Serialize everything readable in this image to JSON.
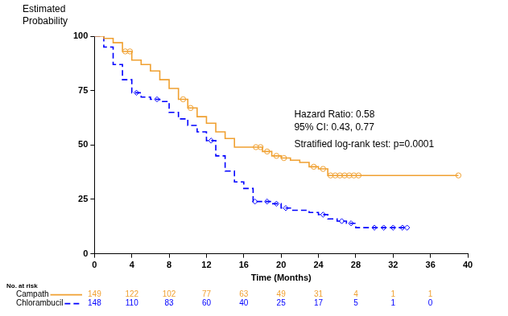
{
  "chart_data": {
    "type": "line",
    "y_label": "Estimated Probability",
    "x_label": "Time (Months)",
    "xlim": [
      0,
      40
    ],
    "xticks": [
      0,
      4,
      8,
      12,
      16,
      20,
      24,
      28,
      32,
      36,
      40
    ],
    "ylim": [
      0,
      100
    ],
    "yticks": [
      0,
      25,
      50,
      75,
      100
    ],
    "grid": false,
    "annotations": [
      "Hazard Ratio: 0.58",
      "95% CI: 0.43, 0.77",
      "Stratified log-rank test: p=0.0001"
    ],
    "series": [
      {
        "name": "Campath",
        "color": "#f0a030",
        "line_style": "solid",
        "marker": "circle",
        "x": [
          0,
          1,
          2,
          3,
          4,
          5,
          6,
          7,
          8,
          9,
          10,
          11,
          12,
          13,
          14,
          15,
          18,
          19,
          20,
          21,
          22,
          23,
          24,
          25,
          39
        ],
        "values": [
          100,
          99,
          97,
          93,
          89,
          87,
          84,
          80,
          76,
          71,
          67,
          63,
          60,
          56,
          53,
          49,
          47,
          45,
          44,
          43,
          42,
          40,
          39,
          36,
          36
        ],
        "censored": {
          "x": [
            3.3,
            3.8,
            9.5,
            10.3,
            17.3,
            17.8,
            18.5,
            19.5,
            20.3,
            23.5,
            24.5,
            25.3,
            25.8,
            26.3,
            26.8,
            27.3,
            27.8,
            28.3,
            39
          ],
          "values": [
            93,
            93,
            71,
            67,
            49,
            49,
            47,
            45,
            44,
            40,
            39,
            36,
            36,
            36,
            36,
            36,
            36,
            36,
            36
          ]
        }
      },
      {
        "name": "Chlorambucil",
        "color": "#0000ff",
        "line_style": "dashed",
        "marker": "diamond",
        "x": [
          0,
          1,
          2,
          3,
          4,
          5,
          6,
          7,
          8,
          9,
          10,
          11,
          12,
          13,
          14,
          15,
          16,
          17,
          19,
          20,
          21,
          23,
          24,
          25,
          26,
          27,
          28,
          33.5
        ],
        "values": [
          100,
          95,
          87,
          80,
          74,
          72,
          71,
          70,
          65,
          62,
          59,
          56,
          52,
          45,
          38,
          33,
          30,
          24,
          23,
          21,
          20,
          19,
          18,
          16,
          15,
          14,
          12,
          12
        ],
        "censored": {
          "x": [
            4.5,
            6.7,
            12.5,
            17.2,
            18.5,
            19.5,
            20.5,
            24.5,
            26.5,
            27.5,
            30,
            31,
            32,
            33,
            33.5
          ],
          "values": [
            74,
            71,
            52,
            24,
            24,
            23,
            21,
            18,
            15,
            14,
            12,
            12,
            12,
            12,
            12
          ]
        }
      }
    ],
    "number_at_risk": {
      "title": "No. at risk",
      "times": [
        0,
        4,
        8,
        12,
        16,
        20,
        24,
        28,
        32,
        36
      ],
      "series": [
        {
          "name": "Campath",
          "values": [
            149,
            122,
            102,
            77,
            63,
            49,
            31,
            4,
            1,
            1
          ]
        },
        {
          "name": "Chlorambucil",
          "values": [
            148,
            110,
            83,
            60,
            40,
            25,
            17,
            5,
            1,
            0
          ]
        }
      ]
    }
  }
}
